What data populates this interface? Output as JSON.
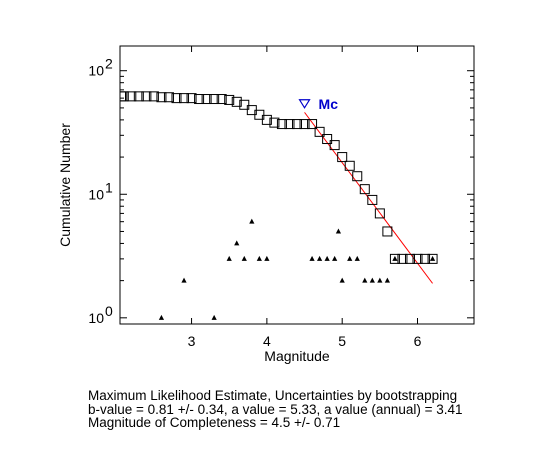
{
  "chart_data": {
    "type": "scatter",
    "xlabel": "Magnitude",
    "ylabel": "Cumulative Number",
    "xlim": [
      2.05,
      6.75
    ],
    "ylim_log10": [
      -0.05,
      2.2
    ],
    "yscale": "log",
    "x_ticks": [
      3,
      4,
      5,
      6
    ],
    "y_ticks": [
      {
        "value": 1,
        "base": "10",
        "exp": "0"
      },
      {
        "value": 10,
        "base": "10",
        "exp": "1"
      },
      {
        "value": 100,
        "base": "10",
        "exp": "2"
      }
    ],
    "series": [
      {
        "marker": "square",
        "x": [
          2.0,
          2.1,
          2.2,
          2.3,
          2.4,
          2.5,
          2.6,
          2.7,
          2.8,
          2.9,
          3.0,
          3.1,
          3.2,
          3.3,
          3.4,
          3.5,
          3.6,
          3.7,
          3.8,
          3.9,
          4.0,
          4.1,
          4.2,
          4.3,
          4.4,
          4.5,
          4.6,
          4.7,
          4.8,
          4.9,
          5.0,
          5.1,
          5.2,
          5.3,
          5.4,
          5.5,
          5.6,
          5.7,
          5.8,
          5.9,
          6.0,
          6.1,
          6.2
        ],
        "y": [
          62,
          62,
          62,
          62,
          62,
          62,
          61,
          61,
          60,
          60,
          60,
          59,
          59,
          59,
          59,
          58,
          56,
          53,
          48,
          44,
          40,
          38,
          37,
          37,
          37,
          37,
          37,
          32,
          28,
          25,
          20,
          17,
          14,
          11,
          9,
          7,
          5,
          3,
          3,
          3,
          3,
          3,
          3
        ]
      },
      {
        "marker": "triangle",
        "x": [
          2.6,
          2.9,
          3.3,
          3.5,
          3.6,
          3.7,
          3.8,
          3.9,
          4.0,
          4.6,
          4.7,
          4.8,
          4.9,
          4.95,
          5.0,
          5.1,
          5.2,
          5.3,
          5.4,
          5.5,
          5.6,
          5.7,
          6.2
        ],
        "y": [
          1,
          2,
          1,
          3,
          4,
          3,
          6,
          3,
          3,
          3,
          3,
          3,
          3,
          5,
          2,
          3,
          3,
          2,
          2,
          2,
          2,
          3,
          3
        ]
      }
    ],
    "fit_line": {
      "color": "#ff0000",
      "x": [
        4.5,
        6.2
      ],
      "y": [
        46,
        1.9
      ]
    },
    "mc_marker": {
      "label": "Mc",
      "x": 4.5,
      "y": 54,
      "color": "#0000cc"
    }
  },
  "caption": {
    "line1": "Maximum Likelihood Estimate, Uncertainties by bootstrapping",
    "line2": "b-value = 0.81 +/- 0.34,  a value = 5.33,  a value (annual) = 3.41",
    "line3": "Magnitude of Completeness = 4.5 +/- 0.71"
  }
}
